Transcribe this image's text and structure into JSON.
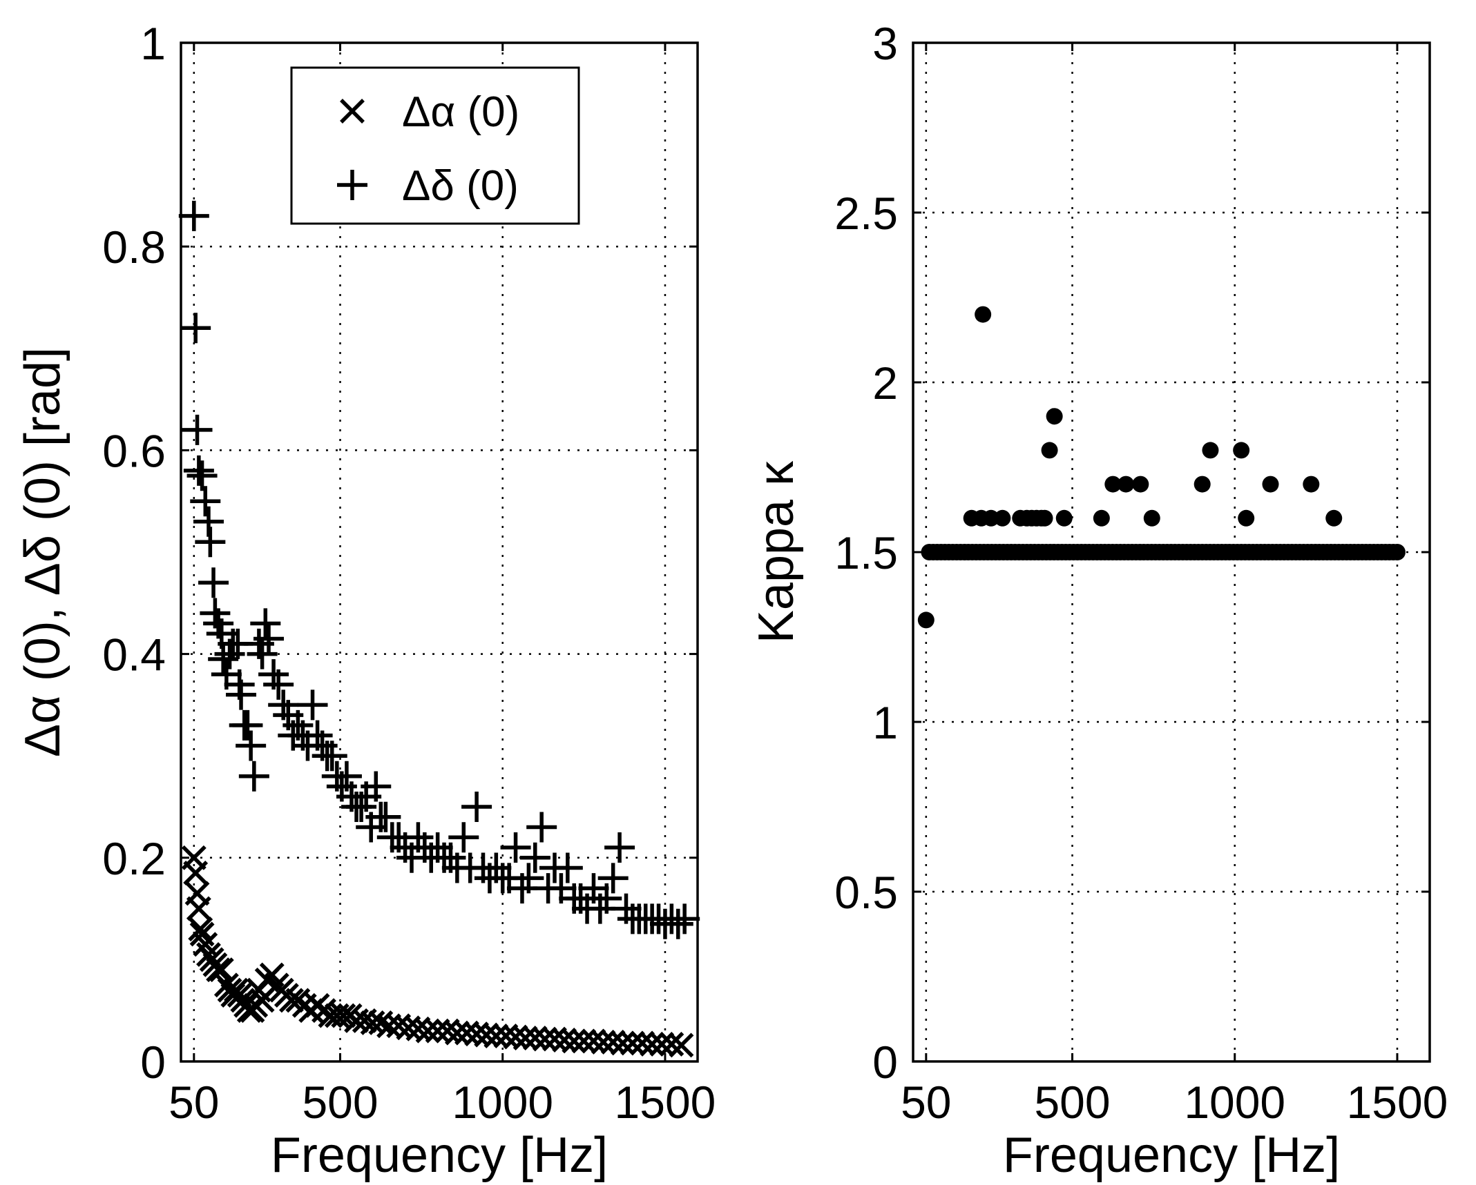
{
  "chart_data": [
    {
      "type": "scatter",
      "xlabel": "Frequency [Hz]",
      "ylabel": "Δα (0), Δδ (0) [rad]",
      "xlim": [
        10,
        1600
      ],
      "ylim": [
        0,
        1
      ],
      "xticks": [
        50,
        500,
        1000,
        1500
      ],
      "xtick_labels": [
        "50",
        "500",
        "1000",
        "1500"
      ],
      "yticks": [
        0,
        0.2,
        0.4,
        0.6,
        0.8,
        1
      ],
      "ytick_labels": [
        "0",
        "0.2",
        "0.4",
        "0.6",
        "0.8",
        "1"
      ],
      "grid": true,
      "legend": {
        "placement": "top",
        "entries": [
          "Δα (0)",
          "Δδ (0)"
        ]
      },
      "series": [
        {
          "name": "Δα (0)",
          "marker": "x",
          "points": [
            [
              50,
              0.2
            ],
            [
              55,
              0.185
            ],
            [
              60,
              0.165
            ],
            [
              65,
              0.15
            ],
            [
              70,
              0.13
            ],
            [
              75,
              0.125
            ],
            [
              85,
              0.115
            ],
            [
              95,
              0.105
            ],
            [
              105,
              0.1
            ],
            [
              115,
              0.095
            ],
            [
              125,
              0.09
            ],
            [
              135,
              0.09
            ],
            [
              150,
              0.075
            ],
            [
              160,
              0.07
            ],
            [
              170,
              0.065
            ],
            [
              180,
              0.07
            ],
            [
              190,
              0.065
            ],
            [
              200,
              0.06
            ],
            [
              210,
              0.055
            ],
            [
              220,
              0.05
            ],
            [
              230,
              0.05
            ],
            [
              240,
              0.055
            ],
            [
              250,
              0.07
            ],
            [
              260,
              0.06
            ],
            [
              275,
              0.08
            ],
            [
              290,
              0.085
            ],
            [
              305,
              0.075
            ],
            [
              320,
              0.07
            ],
            [
              335,
              0.065
            ],
            [
              350,
              0.06
            ],
            [
              370,
              0.06
            ],
            [
              390,
              0.055
            ],
            [
              410,
              0.05
            ],
            [
              430,
              0.055
            ],
            [
              450,
              0.05
            ],
            [
              470,
              0.045
            ],
            [
              490,
              0.045
            ],
            [
              510,
              0.045
            ],
            [
              530,
              0.045
            ],
            [
              550,
              0.04
            ],
            [
              575,
              0.04
            ],
            [
              600,
              0.038
            ],
            [
              625,
              0.038
            ],
            [
              650,
              0.035
            ],
            [
              680,
              0.035
            ],
            [
              710,
              0.033
            ],
            [
              740,
              0.032
            ],
            [
              770,
              0.03
            ],
            [
              800,
              0.03
            ],
            [
              830,
              0.03
            ],
            [
              860,
              0.028
            ],
            [
              890,
              0.028
            ],
            [
              920,
              0.027
            ],
            [
              950,
              0.026
            ],
            [
              980,
              0.025
            ],
            [
              1010,
              0.025
            ],
            [
              1040,
              0.024
            ],
            [
              1070,
              0.023
            ],
            [
              1100,
              0.023
            ],
            [
              1130,
              0.022
            ],
            [
              1160,
              0.022
            ],
            [
              1190,
              0.021
            ],
            [
              1220,
              0.02
            ],
            [
              1250,
              0.02
            ],
            [
              1280,
              0.02
            ],
            [
              1310,
              0.019
            ],
            [
              1340,
              0.019
            ],
            [
              1370,
              0.018
            ],
            [
              1400,
              0.018
            ],
            [
              1430,
              0.018
            ],
            [
              1460,
              0.017
            ],
            [
              1490,
              0.017
            ],
            [
              1520,
              0.017
            ],
            [
              1550,
              0.016
            ]
          ]
        },
        {
          "name": "Δδ (0)",
          "marker": "+",
          "points": [
            [
              50,
              0.83
            ],
            [
              55,
              0.72
            ],
            [
              60,
              0.62
            ],
            [
              65,
              0.58
            ],
            [
              75,
              0.575
            ],
            [
              85,
              0.55
            ],
            [
              95,
              0.53
            ],
            [
              100,
              0.51
            ],
            [
              110,
              0.47
            ],
            [
              115,
              0.44
            ],
            [
              125,
              0.43
            ],
            [
              135,
              0.42
            ],
            [
              140,
              0.395
            ],
            [
              150,
              0.38
            ],
            [
              160,
              0.4
            ],
            [
              170,
              0.41
            ],
            [
              185,
              0.41
            ],
            [
              190,
              0.37
            ],
            [
              195,
              0.36
            ],
            [
              205,
              0.33
            ],
            [
              215,
              0.33
            ],
            [
              225,
              0.31
            ],
            [
              235,
              0.28
            ],
            [
              250,
              0.41
            ],
            [
              260,
              0.4
            ],
            [
              270,
              0.43
            ],
            [
              280,
              0.415
            ],
            [
              295,
              0.38
            ],
            [
              310,
              0.37
            ],
            [
              325,
              0.35
            ],
            [
              340,
              0.34
            ],
            [
              355,
              0.32
            ],
            [
              370,
              0.33
            ],
            [
              385,
              0.32
            ],
            [
              400,
              0.31
            ],
            [
              415,
              0.35
            ],
            [
              430,
              0.32
            ],
            [
              445,
              0.31
            ],
            [
              460,
              0.3
            ],
            [
              475,
              0.3
            ],
            [
              490,
              0.28
            ],
            [
              505,
              0.27
            ],
            [
              520,
              0.28
            ],
            [
              535,
              0.26
            ],
            [
              550,
              0.25
            ],
            [
              565,
              0.25
            ],
            [
              580,
              0.26
            ],
            [
              595,
              0.23
            ],
            [
              610,
              0.27
            ],
            [
              625,
              0.24
            ],
            [
              640,
              0.24
            ],
            [
              660,
              0.22
            ],
            [
              680,
              0.22
            ],
            [
              700,
              0.21
            ],
            [
              720,
              0.2
            ],
            [
              740,
              0.22
            ],
            [
              760,
              0.21
            ],
            [
              780,
              0.2
            ],
            [
              800,
              0.21
            ],
            [
              820,
              0.2
            ],
            [
              840,
              0.2
            ],
            [
              860,
              0.19
            ],
            [
              880,
              0.22
            ],
            [
              900,
              0.19
            ],
            [
              920,
              0.25
            ],
            [
              940,
              0.19
            ],
            [
              960,
              0.18
            ],
            [
              980,
              0.19
            ],
            [
              1000,
              0.18
            ],
            [
              1020,
              0.18
            ],
            [
              1040,
              0.21
            ],
            [
              1060,
              0.17
            ],
            [
              1080,
              0.18
            ],
            [
              1100,
              0.2
            ],
            [
              1120,
              0.23
            ],
            [
              1140,
              0.17
            ],
            [
              1160,
              0.19
            ],
            [
              1180,
              0.17
            ],
            [
              1200,
              0.19
            ],
            [
              1220,
              0.16
            ],
            [
              1240,
              0.16
            ],
            [
              1260,
              0.15
            ],
            [
              1280,
              0.17
            ],
            [
              1300,
              0.15
            ],
            [
              1320,
              0.16
            ],
            [
              1340,
              0.18
            ],
            [
              1360,
              0.21
            ],
            [
              1380,
              0.15
            ],
            [
              1400,
              0.14
            ],
            [
              1420,
              0.14
            ],
            [
              1440,
              0.14
            ],
            [
              1460,
              0.14
            ],
            [
              1480,
              0.14
            ],
            [
              1500,
              0.135
            ],
            [
              1520,
              0.14
            ],
            [
              1540,
              0.135
            ],
            [
              1560,
              0.14
            ]
          ]
        }
      ]
    },
    {
      "type": "scatter",
      "xlabel": "Frequency [Hz]",
      "ylabel": "Kappa κ",
      "xlim": [
        10,
        1600
      ],
      "ylim": [
        0,
        3
      ],
      "xticks": [
        50,
        500,
        1000,
        1500
      ],
      "xtick_labels": [
        "50",
        "500",
        "1000",
        "1500"
      ],
      "yticks": [
        0,
        0.5,
        1,
        1.5,
        2,
        2.5,
        3
      ],
      "ytick_labels": [
        "0",
        "0.5",
        "1",
        "1.5",
        "2",
        "2.5",
        "3"
      ],
      "grid": true,
      "series": [
        {
          "name": "Kappa",
          "marker": "o",
          "points": [
            [
              50,
              1.3
            ],
            [
              225,
              2.2
            ],
            [
              190,
              1.6
            ],
            [
              220,
              1.6
            ],
            [
              250,
              1.6
            ],
            [
              285,
              1.6
            ],
            [
              340,
              1.6
            ],
            [
              360,
              1.6
            ],
            [
              375,
              1.6
            ],
            [
              390,
              1.6
            ],
            [
              405,
              1.6
            ],
            [
              415,
              1.6
            ],
            [
              430,
              1.8
            ],
            [
              445,
              1.9
            ],
            [
              475,
              1.6
            ],
            [
              590,
              1.6
            ],
            [
              625,
              1.7
            ],
            [
              665,
              1.7
            ],
            [
              710,
              1.7
            ],
            [
              745,
              1.6
            ],
            [
              900,
              1.7
            ],
            [
              925,
              1.8
            ],
            [
              1020,
              1.8
            ],
            [
              1035,
              1.6
            ],
            [
              1110,
              1.7
            ],
            [
              1235,
              1.7
            ],
            [
              1305,
              1.6
            ]
          ],
          "baseline": {
            "value": 1.5,
            "x_start": 60,
            "x_end": 1500,
            "step": 12
          }
        }
      ]
    }
  ]
}
